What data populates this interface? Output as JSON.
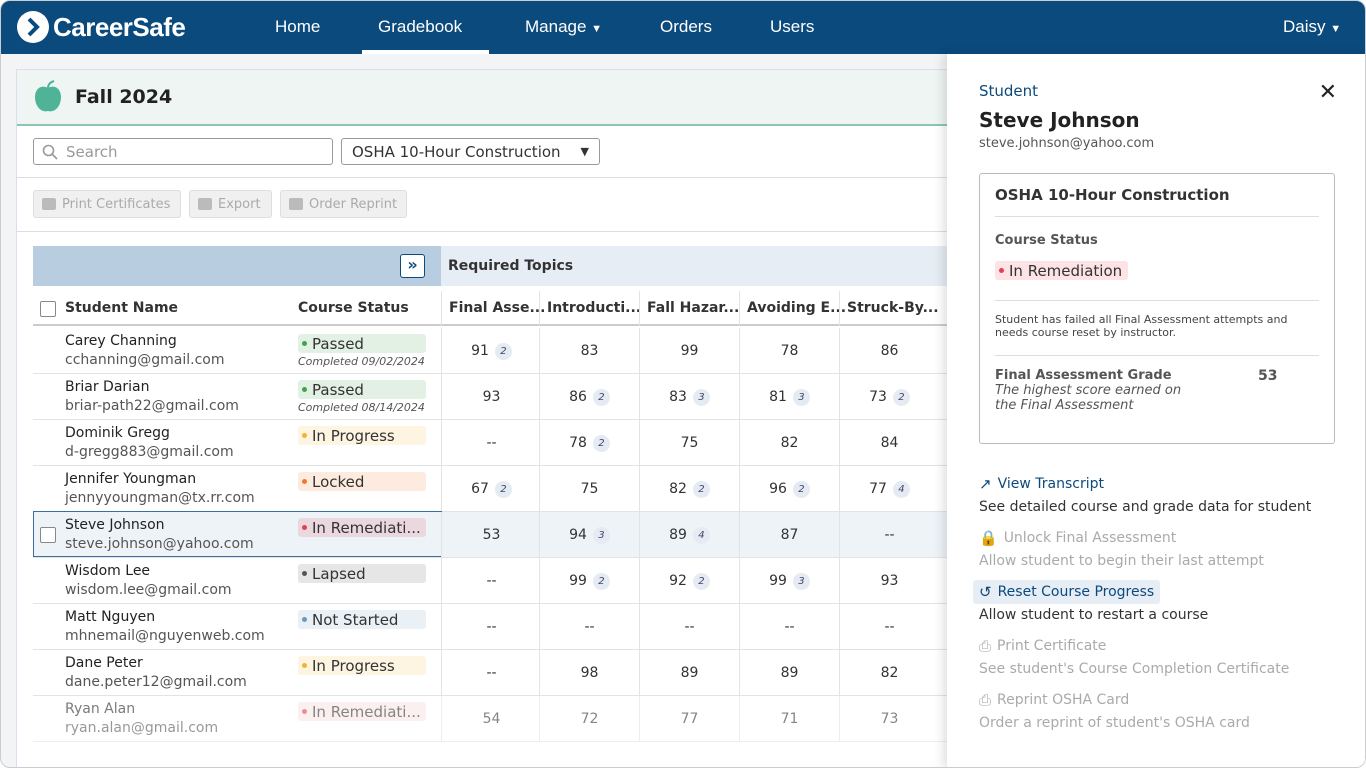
{
  "nav": {
    "brand": "CareerSafe",
    "items": [
      "Home",
      "Gradebook",
      "Manage",
      "Orders",
      "Users"
    ],
    "user": "Daisy"
  },
  "header": {
    "title": "Fall 2024"
  },
  "toolbar": {
    "search_placeholder": "Search",
    "course": "OSHA 10-Hour Construction",
    "buttons": [
      "Print Certificates",
      "Export",
      "Order Reprint"
    ]
  },
  "table": {
    "group_header": "Required Topics",
    "columns": [
      "Student Name",
      "Course Status",
      "Final Asse...",
      "Introducti...",
      "Fall Hazar...",
      "Avoiding E...",
      "Struck-By..."
    ],
    "rows": [
      {
        "name": "Carey Channing",
        "email": "cchanning@gmail.com",
        "status": "Passed",
        "color": "#3fa34d",
        "completed": "Completed 09/02/2024",
        "scores": [
          {
            "score": 91,
            "attempts": 2
          },
          {
            "score": 83
          },
          {
            "score": 99
          },
          {
            "score": 78
          },
          {
            "score": 86
          }
        ]
      },
      {
        "name": "Briar Darian",
        "email": "briar-path22@gmail.com",
        "status": "Passed",
        "color": "#3fa34d",
        "completed": "Completed 08/14/2024",
        "scores": [
          {
            "score": 93
          },
          {
            "score": 86,
            "attempts": 2
          },
          {
            "score": 83,
            "attempts": 3
          },
          {
            "score": 81,
            "attempts": 3
          },
          {
            "score": 73,
            "attempts": 2
          }
        ]
      },
      {
        "name": "Dominik Gregg",
        "email": "d-gregg883@gmail.com",
        "status": "In Progress",
        "color": "#f2b233",
        "scores": [
          {
            "score": "--"
          },
          {
            "score": 78,
            "attempts": 2
          },
          {
            "score": 75
          },
          {
            "score": 82
          },
          {
            "score": 84
          }
        ]
      },
      {
        "name": "Jennifer Youngman",
        "email": "jennyyoungman@tx.rr.com",
        "status": "Locked",
        "color": "#f07a2a",
        "scores": [
          {
            "score": 67,
            "attempts": 2
          },
          {
            "score": 75
          },
          {
            "score": 82,
            "attempts": 2
          },
          {
            "score": 96,
            "attempts": 2
          },
          {
            "score": 77,
            "attempts": 4
          }
        ]
      },
      {
        "name": "Steve Johnson",
        "email": "steve.johnson@yahoo.com",
        "status": "In Remediati...",
        "color": "#e0434f",
        "scores": [
          {
            "score": 53
          },
          {
            "score": 94,
            "attempts": 3
          },
          {
            "score": 89,
            "attempts": 4
          },
          {
            "score": 87
          },
          {
            "score": "--"
          }
        ]
      },
      {
        "name": "Wisdom Lee",
        "email": "wisdom.lee@gmail.com",
        "status": "Lapsed",
        "color": "#555555",
        "scores": [
          {
            "score": "--"
          },
          {
            "score": 99,
            "attempts": 2
          },
          {
            "score": 92,
            "attempts": 2
          },
          {
            "score": 99,
            "attempts": 3
          },
          {
            "score": 93
          }
        ]
      },
      {
        "name": "Matt Nguyen",
        "email": "mhnemail@nguyenweb.com",
        "status": "Not Started",
        "color": "#6b97c2",
        "scores": [
          {
            "score": "--"
          },
          {
            "score": "--"
          },
          {
            "score": "--"
          },
          {
            "score": "--"
          },
          {
            "score": "--"
          }
        ]
      },
      {
        "name": "Dane Peter",
        "email": "dane.peter12@gmail.com",
        "status": "In Progress",
        "color": "#f2b233",
        "scores": [
          {
            "score": "--"
          },
          {
            "score": 98
          },
          {
            "score": 89
          },
          {
            "score": 89
          },
          {
            "score": 82
          }
        ]
      },
      {
        "name": "Ryan Alan",
        "email": "ryan.alan@gmail.com",
        "status": "In Remediati...",
        "color": "#e0434f",
        "scores": [
          {
            "score": 54
          },
          {
            "score": 72
          },
          {
            "score": 77
          },
          {
            "score": 71
          },
          {
            "score": 73
          }
        ]
      }
    ]
  },
  "panel": {
    "label": "Student",
    "name": "Steve Johnson",
    "email": "steve.johnson@yahoo.com",
    "card": {
      "course": "OSHA 10-Hour Construction",
      "status_label": "Course Status",
      "status": "In Remediation",
      "note": "Student has failed all Final Assessment attempts and needs course reset by instructor.",
      "grade_label": "Final Assessment Grade",
      "grade_description": "The highest score earned on the Final Assessment",
      "grade": 53
    },
    "actions": [
      {
        "label": "View Transcript",
        "description": "See detailed course and grade data for student",
        "enabled": true
      },
      {
        "label": "Unlock Final Assessment",
        "description": "Allow student to begin their last attempt",
        "enabled": false
      },
      {
        "label": "Reset Course Progress",
        "description": "Allow student to restart a course",
        "enabled": true
      },
      {
        "label": "Print Certificate",
        "description": "See student's Course Completion Certificate",
        "enabled": false
      },
      {
        "label": "Reprint OSHA Card",
        "description": "Order a reprint of student's OSHA card",
        "enabled": false
      }
    ]
  }
}
